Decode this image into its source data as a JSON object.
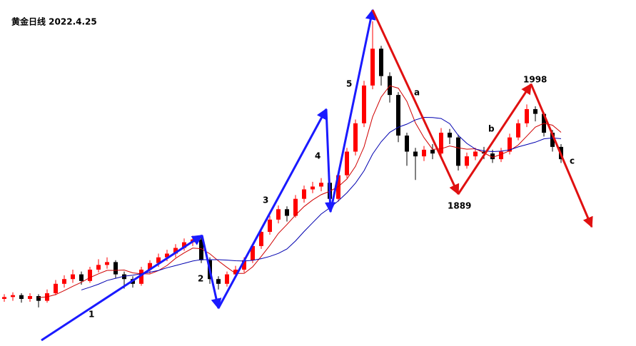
{
  "chart_data": {
    "type": "candlestick",
    "title": "黄金日线 2022.4.25",
    "up_color": "#ff0000",
    "down_color": "#000000",
    "ylim": [
      1740,
      2080
    ],
    "open": [
      1774,
      1776,
      1778,
      1774,
      1777,
      1772,
      1780,
      1790,
      1795,
      1800,
      1793,
      1805,
      1810,
      1813,
      1800,
      1795,
      1790,
      1805,
      1812,
      1818,
      1822,
      1828,
      1834,
      1837,
      1815,
      1795,
      1790,
      1800,
      1805,
      1815,
      1830,
      1845,
      1858,
      1869,
      1862,
      1880,
      1890,
      1893,
      1897,
      1880,
      1905,
      1930,
      1960,
      2000,
      2039,
      2010,
      1990,
      1947,
      1930,
      1925,
      1932,
      1928,
      1950,
      1945,
      1915,
      1925,
      1930,
      1928,
      1922,
      1930,
      1945,
      1960,
      1975,
      1970,
      1950,
      1935
    ],
    "high": [
      1779,
      1781,
      1780,
      1780,
      1779,
      1784,
      1794,
      1799,
      1805,
      1803,
      1808,
      1816,
      1818,
      1815,
      1803,
      1798,
      1808,
      1815,
      1822,
      1826,
      1832,
      1838,
      1841,
      1839,
      1818,
      1798,
      1803,
      1809,
      1818,
      1833,
      1849,
      1862,
      1873,
      1872,
      1884,
      1894,
      1898,
      1902,
      1899,
      1908,
      1934,
      1964,
      2005,
      2068,
      2042,
      2014,
      1993,
      1950,
      1934,
      1936,
      1938,
      1955,
      1954,
      1948,
      1929,
      1934,
      1935,
      1932,
      1934,
      1949,
      1964,
      1980,
      1978,
      1972,
      1953,
      1938
    ],
    "low": [
      1771,
      1772,
      1770,
      1771,
      1765,
      1770,
      1778,
      1786,
      1791,
      1789,
      1791,
      1802,
      1806,
      1796,
      1785,
      1786,
      1788,
      1801,
      1808,
      1814,
      1818,
      1825,
      1830,
      1812,
      1790,
      1784,
      1787,
      1796,
      1802,
      1812,
      1827,
      1842,
      1854,
      1856,
      1860,
      1876,
      1886,
      1888,
      1872,
      1877,
      1902,
      1926,
      1956,
      1996,
      2000,
      1982,
      1940,
      1915,
      1900,
      1920,
      1922,
      1924,
      1938,
      1910,
      1912,
      1921,
      1922,
      1918,
      1919,
      1927,
      1942,
      1956,
      1962,
      1946,
      1930,
      1918
    ],
    "close": [
      1776,
      1778,
      1774,
      1777,
      1772,
      1780,
      1790,
      1795,
      1800,
      1793,
      1805,
      1810,
      1813,
      1800,
      1795,
      1790,
      1805,
      1812,
      1818,
      1822,
      1828,
      1834,
      1837,
      1815,
      1795,
      1790,
      1800,
      1805,
      1815,
      1830,
      1845,
      1858,
      1869,
      1862,
      1880,
      1890,
      1893,
      1897,
      1880,
      1905,
      1930,
      1960,
      2000,
      2039,
      2010,
      1990,
      1947,
      1930,
      1925,
      1932,
      1928,
      1950,
      1945,
      1915,
      1925,
      1930,
      1928,
      1922,
      1930,
      1945,
      1960,
      1975,
      1970,
      1950,
      1935,
      1922
    ],
    "annotations": [
      "1",
      "2",
      "3",
      "4",
      "5",
      "a",
      "b",
      "c",
      "1889",
      "1998"
    ]
  }
}
